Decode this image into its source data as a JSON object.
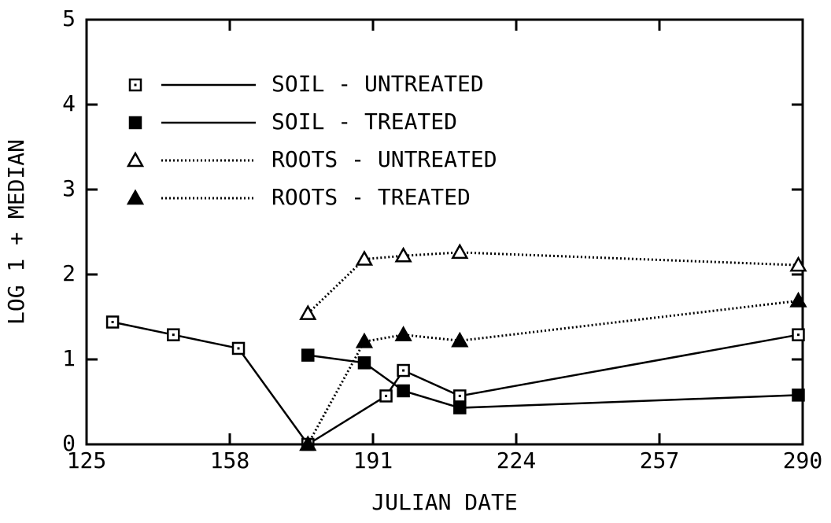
{
  "chart_data": {
    "type": "line",
    "x_label": "JULIAN DATE",
    "y_label": "LOG 1 + MEDIAN",
    "xlim": [
      125,
      290
    ],
    "xticks": [
      125,
      158,
      191,
      224,
      257,
      290
    ],
    "ylim": [
      0,
      5
    ],
    "yticks": [
      0,
      1,
      2,
      3,
      4,
      5
    ],
    "legend": "upper left",
    "series": [
      {
        "name": "SOIL - UNTREATED",
        "color": "#000000",
        "line": "solid",
        "marker": "open-square",
        "x": [
          131,
          145,
          160,
          176,
          194,
          198,
          211,
          289
        ],
        "values": [
          1.44,
          1.29,
          1.13,
          0,
          0.57,
          0.87,
          0.57,
          1.29
        ]
      },
      {
        "name": "SOIL - TREATED",
        "color": "#000000",
        "line": "solid",
        "marker": "filled-square",
        "x": [
          176,
          189,
          198,
          211,
          289
        ],
        "values": [
          1.05,
          0.96,
          0.63,
          0.43,
          0.58
        ]
      },
      {
        "name": "ROOTS - UNTREATED",
        "color": "#000000",
        "line": "dotted",
        "marker": "open-triangle",
        "x": [
          176,
          189,
          198,
          211,
          289
        ],
        "values": [
          1.54,
          2.18,
          2.22,
          2.26,
          2.11
        ]
      },
      {
        "name": "ROOTS - TREATED",
        "color": "#000000",
        "line": "dotted",
        "marker": "filled-triangle",
        "x": [
          176,
          189,
          198,
          211,
          289
        ],
        "values": [
          0,
          1.21,
          1.29,
          1.22,
          1.69
        ]
      }
    ]
  }
}
